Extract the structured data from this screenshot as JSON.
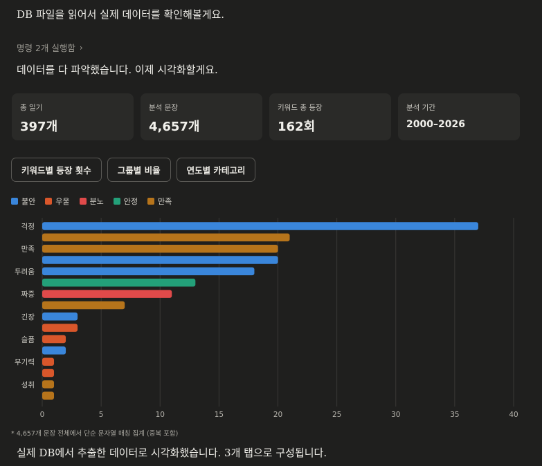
{
  "messages": {
    "intro": "DB 파일을 읽어서 실제 데이터를 확인해볼게요.",
    "command_summary": "명령 2개 실행함",
    "ready": "데이터를 다 파악했습니다. 이제 시각화할게요.",
    "outro": "실제 DB에서 추출한 데이터로 시각화했습니다. 3개 탭으로 구성됩니다."
  },
  "stats": [
    {
      "label": "총 일기",
      "value": "397개"
    },
    {
      "label": "분석 문장",
      "value": "4,657개"
    },
    {
      "label": "키워드 총 등장",
      "value": "162회"
    },
    {
      "label": "분석 기간",
      "value": "2000–2026"
    }
  ],
  "tabs": [
    {
      "label": "키워드별 등장 횟수"
    },
    {
      "label": "그룹별 비율"
    },
    {
      "label": "연도별 카테고리"
    }
  ],
  "footnote": "* 4,657개 문장 전체에서 단순 문자열 매칭 집계 (중복 포함)",
  "icons": {
    "command_chevron": "chevron-right-icon"
  },
  "colors": {
    "불안": "#3a86db",
    "우울": "#d9572b",
    "분노": "#e04a4a",
    "안정": "#23a079",
    "만족": "#b6741b"
  },
  "chart_data": {
    "type": "bar",
    "orientation": "horizontal",
    "legend": [
      "불안",
      "우울",
      "분노",
      "안정",
      "만족"
    ],
    "legend_position": "top-left",
    "xlim": [
      0,
      40
    ],
    "xticks": [
      0,
      5,
      10,
      15,
      20,
      25,
      30,
      35,
      40
    ],
    "grid": "vertical",
    "y_tick_labels": [
      "걱정",
      "만족",
      "두려움",
      "짜증",
      "긴장",
      "슬픔",
      "무기력",
      "성취"
    ],
    "bars": [
      {
        "group": "불안",
        "value": 37
      },
      {
        "group": "만족",
        "value": 21
      },
      {
        "group": "만족",
        "value": 20
      },
      {
        "group": "불안",
        "value": 20
      },
      {
        "group": "불안",
        "value": 18
      },
      {
        "group": "안정",
        "value": 13
      },
      {
        "group": "분노",
        "value": 11
      },
      {
        "group": "만족",
        "value": 7
      },
      {
        "group": "불안",
        "value": 3
      },
      {
        "group": "우울",
        "value": 3
      },
      {
        "group": "우울",
        "value": 2
      },
      {
        "group": "불안",
        "value": 2
      },
      {
        "group": "우울",
        "value": 1
      },
      {
        "group": "우울",
        "value": 1
      },
      {
        "group": "만족",
        "value": 1
      },
      {
        "group": "만족",
        "value": 1
      }
    ]
  }
}
